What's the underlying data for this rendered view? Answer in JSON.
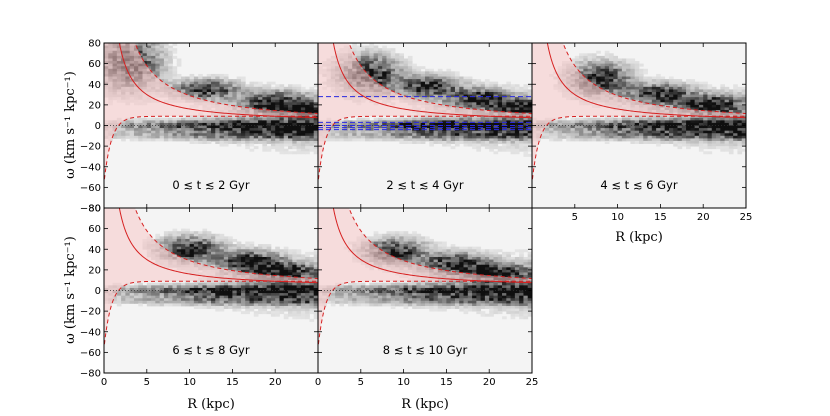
{
  "figure": {
    "panel_ids": [
      "p1",
      "p2",
      "p3",
      "p4",
      "p5"
    ],
    "colors": {
      "band_fill": "#f7c9c9",
      "curve": "#d62020",
      "blue_line": "#2a2ae0",
      "zero_line": "#333333",
      "heat_dark": "#111111"
    }
  },
  "chart_data": [
    {
      "id": "p1",
      "type": "heatmap",
      "label": "0 ≲ t ≲ 2 Gyr",
      "xlim": [
        0,
        25
      ],
      "ylim": [
        -80,
        80
      ],
      "xticks": [],
      "xtick_labels": [],
      "yticks": [
        -80,
        -60,
        -40,
        -20,
        0,
        20,
        40,
        60,
        80
      ],
      "ytick_labels": [
        "−80",
        "−60",
        "−40",
        "−20",
        "0",
        "20",
        "40",
        "60",
        "80"
      ],
      "xlabel": "",
      "ylabel": "ω (km s⁻¹ kpc⁻¹)",
      "curve_amplitude": 200,
      "band_width": 10,
      "ridges": [
        [
          3,
          60,
          25
        ],
        [
          12,
          35,
          9
        ],
        [
          20,
          22,
          10
        ],
        [
          24,
          15,
          6
        ]
      ],
      "blue_lines": []
    },
    {
      "id": "p2",
      "type": "heatmap",
      "label": "2 ≲ t ≲ 4 Gyr",
      "xlim": [
        0,
        25
      ],
      "ylim": [
        -80,
        80
      ],
      "xticks": [],
      "xtick_labels": [],
      "yticks": [],
      "ytick_labels": [],
      "xlabel": "",
      "ylabel": "",
      "curve_amplitude": 200,
      "band_width": 10,
      "ridges": [
        [
          6,
          50,
          18
        ],
        [
          13,
          38,
          10
        ],
        [
          19,
          26,
          9
        ],
        [
          24,
          18,
          6
        ]
      ],
      "blue_lines": [
        28,
        3,
        0,
        -2,
        -4
      ]
    },
    {
      "id": "p3",
      "type": "heatmap",
      "label": "4 ≲ t ≲ 6 Gyr",
      "xlim": [
        0,
        25
      ],
      "ylim": [
        -80,
        80
      ],
      "xticks": [
        5,
        10,
        15,
        20,
        25
      ],
      "xtick_labels": [
        "5",
        "10",
        "15",
        "20",
        "25"
      ],
      "yticks": [],
      "ytick_labels": [],
      "xlabel": "R (kpc)",
      "ylabel": "",
      "curve_amplitude": 200,
      "band_width": 10,
      "ridges": [
        [
          8,
          45,
          16
        ],
        [
          15,
          30,
          10
        ],
        [
          21,
          20,
          9
        ]
      ],
      "blue_lines": []
    },
    {
      "id": "p4",
      "type": "heatmap",
      "label": "6 ≲ t ≲ 8 Gyr",
      "xlim": [
        0,
        25
      ],
      "ylim": [
        -80,
        80
      ],
      "xticks": [
        0,
        5,
        10,
        15,
        20
      ],
      "xtick_labels": [
        "0",
        "5",
        "10",
        "15",
        "20"
      ],
      "yticks": [
        -80,
        -60,
        -40,
        -20,
        0,
        20,
        40,
        60,
        80
      ],
      "ytick_labels": [
        "−80",
        "−60",
        "−40",
        "−20",
        "0",
        "20",
        "40",
        "60",
        "80"
      ],
      "xlabel": "R (kpc)",
      "ylabel": "ω (km s⁻¹ kpc⁻¹)",
      "curve_amplitude": 200,
      "band_width": 10,
      "ridges": [
        [
          10,
          40,
          12
        ],
        [
          17,
          28,
          10
        ],
        [
          21,
          18,
          8
        ]
      ],
      "blue_lines": []
    },
    {
      "id": "p5",
      "type": "heatmap",
      "label": "8 ≲ t ≲ 10 Gyr",
      "xlim": [
        0,
        25
      ],
      "ylim": [
        -80,
        80
      ],
      "xticks": [
        0,
        5,
        10,
        15,
        20,
        25
      ],
      "xtick_labels": [
        "0",
        "5",
        "10",
        "15",
        "20",
        "25"
      ],
      "yticks": [],
      "ytick_labels": [],
      "xlabel": "R (kpc)",
      "ylabel": "",
      "curve_amplitude": 200,
      "band_width": 10,
      "ridges": [
        [
          9,
          38,
          12
        ],
        [
          16,
          26,
          10
        ],
        [
          21,
          16,
          9
        ]
      ],
      "blue_lines": []
    }
  ]
}
